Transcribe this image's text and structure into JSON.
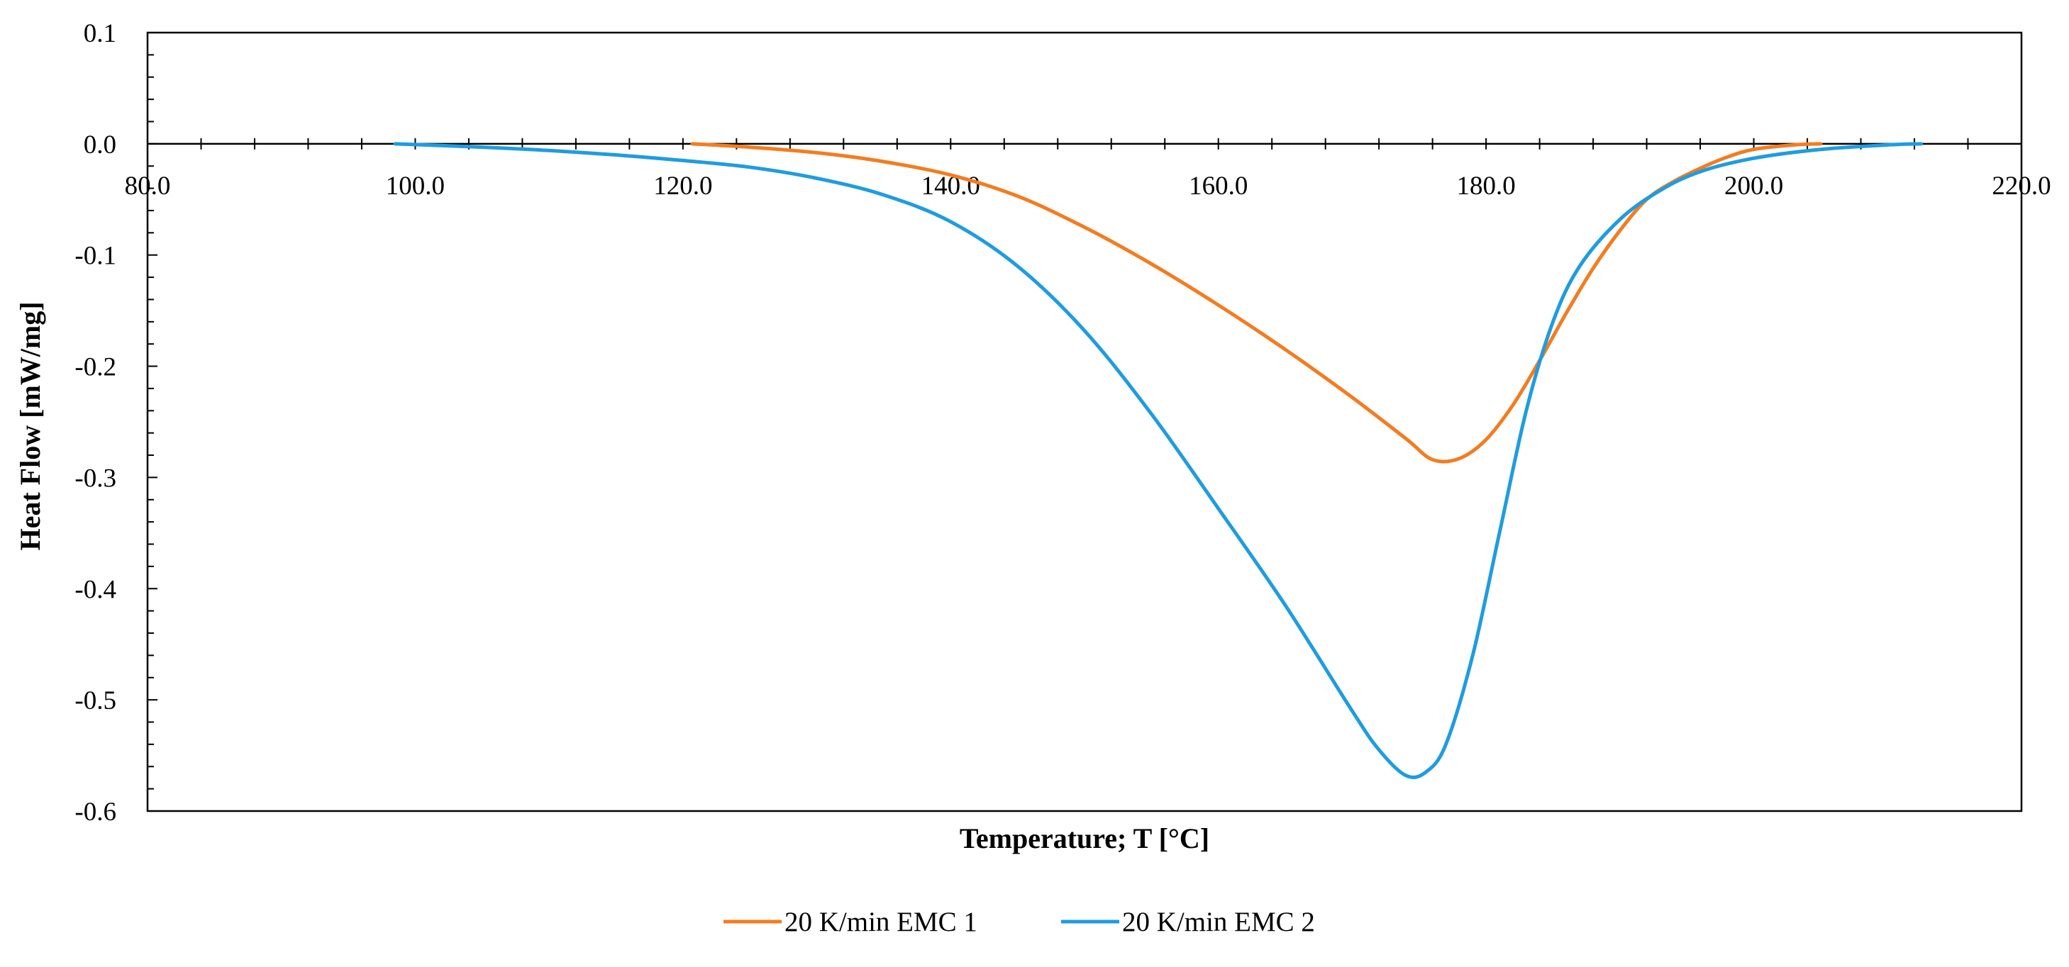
{
  "chart_data": {
    "type": "line",
    "title": "",
    "xlabel": "Temperature; T [°C]",
    "ylabel": "Heat Flow [mW/mg]",
    "xlim": [
      80,
      220
    ],
    "ylim": [
      -0.6,
      0.1
    ],
    "x_ticks": [
      80,
      100,
      120,
      140,
      160,
      180,
      200,
      220
    ],
    "x_tick_labels": [
      "80.0",
      "100.0",
      "120.0",
      "140.0",
      "160.0",
      "180.0",
      "200.0",
      "220.0"
    ],
    "y_ticks": [
      0.1,
      0.0,
      -0.1,
      -0.2,
      -0.3,
      -0.4,
      -0.5,
      -0.6
    ],
    "y_tick_labels": [
      "0.1",
      "0.0",
      "-0.1",
      "-0.2",
      "-0.3",
      "-0.4",
      "-0.5",
      "-0.6"
    ],
    "x_axis_position": 0.0,
    "grid": false,
    "legend_position": "bottom-center",
    "series": [
      {
        "name": "20 K/min EMC 1",
        "color": "#F47C20",
        "points": [
          [
            120.7,
            0.0
          ],
          [
            125,
            -0.003
          ],
          [
            130,
            -0.008
          ],
          [
            135,
            -0.016
          ],
          [
            140,
            -0.028
          ],
          [
            145,
            -0.047
          ],
          [
            150,
            -0.075
          ],
          [
            155,
            -0.108
          ],
          [
            160,
            -0.145
          ],
          [
            165,
            -0.185
          ],
          [
            170,
            -0.228
          ],
          [
            174,
            -0.265
          ],
          [
            176,
            -0.284
          ],
          [
            178,
            -0.283
          ],
          [
            180,
            -0.266
          ],
          [
            182,
            -0.235
          ],
          [
            184,
            -0.195
          ],
          [
            186,
            -0.152
          ],
          [
            188,
            -0.112
          ],
          [
            190,
            -0.078
          ],
          [
            192,
            -0.05
          ],
          [
            194,
            -0.034
          ],
          [
            196,
            -0.022
          ],
          [
            198,
            -0.012
          ],
          [
            200,
            -0.005
          ],
          [
            203,
            -0.001
          ],
          [
            205,
            0.0
          ]
        ]
      },
      {
        "name": "20 K/min EMC 2",
        "color": "#1F9CE0",
        "points": [
          [
            98.5,
            0.0
          ],
          [
            105,
            -0.003
          ],
          [
            110,
            -0.006
          ],
          [
            115,
            -0.01
          ],
          [
            120,
            -0.015
          ],
          [
            125,
            -0.021
          ],
          [
            130,
            -0.031
          ],
          [
            135,
            -0.046
          ],
          [
            140,
            -0.07
          ],
          [
            145,
            -0.11
          ],
          [
            150,
            -0.168
          ],
          [
            155,
            -0.243
          ],
          [
            160,
            -0.328
          ],
          [
            165,
            -0.415
          ],
          [
            170,
            -0.51
          ],
          [
            172,
            -0.545
          ],
          [
            174,
            -0.568
          ],
          [
            175.5,
            -0.565
          ],
          [
            177,
            -0.54
          ],
          [
            179,
            -0.46
          ],
          [
            181,
            -0.35
          ],
          [
            183,
            -0.24
          ],
          [
            185,
            -0.16
          ],
          [
            187,
            -0.11
          ],
          [
            190,
            -0.068
          ],
          [
            193,
            -0.042
          ],
          [
            196,
            -0.025
          ],
          [
            200,
            -0.013
          ],
          [
            205,
            -0.005
          ],
          [
            210,
            -0.001
          ],
          [
            212.5,
            0.0
          ]
        ]
      }
    ]
  }
}
